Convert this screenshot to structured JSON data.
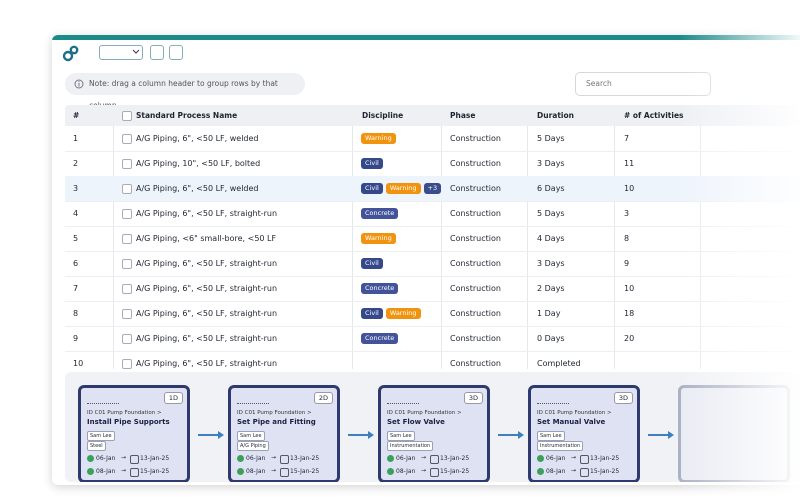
{
  "toolbar": {
    "note": "Note: drag a column header to group rows by that column",
    "search_placeholder": "Search"
  },
  "table": {
    "columns": [
      "#",
      "Standard Process Name",
      "Discipline",
      "Phase",
      "Duration",
      "# of Activities"
    ],
    "rows": [
      {
        "id": "1",
        "name": "A/G Piping, 6\", <50 LF, welded",
        "discipline": [
          "Warning"
        ],
        "phase": "Construction",
        "duration": "5 Days",
        "activities": "7"
      },
      {
        "id": "2",
        "name": "A/G Piping, 10\", <50 LF, bolted",
        "discipline": [
          "Civil"
        ],
        "phase": "Construction",
        "duration": "3 Days",
        "activities": "11"
      },
      {
        "id": "3",
        "name": "A/G Piping, 6\", <50 LF, welded",
        "discipline": [
          "Civil",
          "Warning",
          "+3"
        ],
        "phase": "Construction",
        "duration": "6 Days",
        "activities": "10"
      },
      {
        "id": "4",
        "name": "A/G Piping, 6\", <50 LF, straight-run",
        "discipline": [
          "Concrete"
        ],
        "phase": "Construction",
        "duration": "5 Days",
        "activities": "3"
      },
      {
        "id": "5",
        "name": "A/G Piping, <6\" small-bore, <50 LF",
        "discipline": [
          "Warning"
        ],
        "phase": "Construction",
        "duration": "4 Days",
        "activities": "8"
      },
      {
        "id": "6",
        "name": "A/G Piping, 6\", <50 LF, straight-run",
        "discipline": [
          "Civil"
        ],
        "phase": "Construction",
        "duration": "3 Days",
        "activities": "9"
      },
      {
        "id": "7",
        "name": "A/G Piping, 6\", <50 LF, straight-run",
        "discipline": [
          "Concrete"
        ],
        "phase": "Construction",
        "duration": "2 Days",
        "activities": "10"
      },
      {
        "id": "8",
        "name": "A/G Piping, 6\", <50 LF, straight-run",
        "discipline": [
          "Civil",
          "Warning"
        ],
        "phase": "Construction",
        "duration": "1 Day",
        "activities": "18"
      },
      {
        "id": "9",
        "name": "A/G Piping, 6\", <50 LF, straight-run",
        "discipline": [
          "Concrete"
        ],
        "phase": "Construction",
        "duration": "0 Days",
        "activities": "20"
      },
      {
        "id": "10",
        "name": "A/G Piping, 6\", <50 LF, straight-run",
        "discipline": [],
        "phase": "Construction",
        "duration": "Completed"
      }
    ]
  },
  "cards": [
    {
      "badge": "1D",
      "path": "ID C01 Pump Foundation >",
      "title": "Install Pipe Supports",
      "owner": "Sam Lee",
      "tag": "Steel",
      "dates": [
        [
          "06-Jan",
          "13-Jan-25"
        ],
        [
          "08-Jan",
          "15-Jan-25"
        ]
      ]
    },
    {
      "badge": "2D",
      "path": "ID C01 Pump Foundation >",
      "title": "Set Pipe and Fitting",
      "owner": "Sam Lee",
      "tag": "A/G Piping",
      "dates": [
        [
          "06-Jan",
          "13-Jan-25"
        ],
        [
          "08-Jan",
          "15-Jan-25"
        ]
      ]
    },
    {
      "badge": "3D",
      "path": "ID C01 Pump Foundation >",
      "title": "Set Flow Valve",
      "owner": "Sam Lee",
      "tag": "Instrumentation",
      "dates": [
        [
          "06-Jan",
          "13-Jan-25"
        ],
        [
          "08-Jan",
          "15-Jan-25"
        ]
      ]
    },
    {
      "badge": "3D",
      "path": "ID C01 Pump Foundation >",
      "title": "Set Manual Valve",
      "owner": "Sam Lee",
      "tag": "Instrumentation",
      "dates": [
        [
          "06-Jan",
          "13-Jan-25"
        ],
        [
          "08-Jan",
          "15-Jan-25"
        ]
      ]
    }
  ]
}
